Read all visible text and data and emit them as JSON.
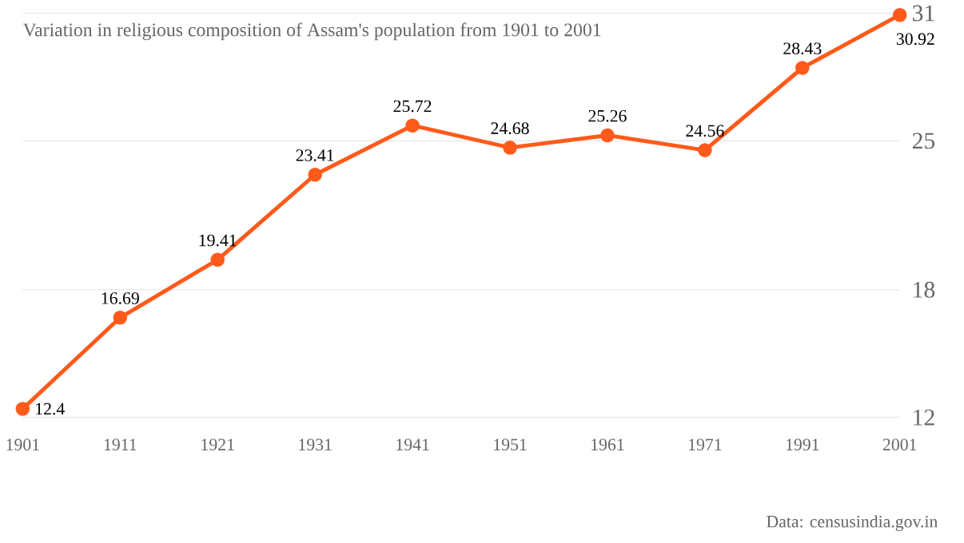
{
  "chart_data": {
    "type": "line",
    "title": "Variation in religious composition of Assam's population from 1901 to 2001",
    "categories": [
      "1901",
      "1911",
      "1921",
      "1931",
      "1941",
      "1951",
      "1961",
      "1971",
      "1991",
      "2001"
    ],
    "series": [
      {
        "color": "#ff5a1a",
        "values": [
          12.4,
          16.69,
          19.41,
          23.41,
          25.72,
          24.68,
          25.26,
          24.56,
          28.43,
          30.92
        ]
      }
    ],
    "ylim": [
      12,
      31
    ],
    "yticks": [
      12,
      18,
      25,
      31
    ],
    "grid": "y",
    "data_labels": true,
    "marker": "circle",
    "line_style": "solid",
    "annotations": [
      "Data: censusindia.gov.in"
    ]
  }
}
